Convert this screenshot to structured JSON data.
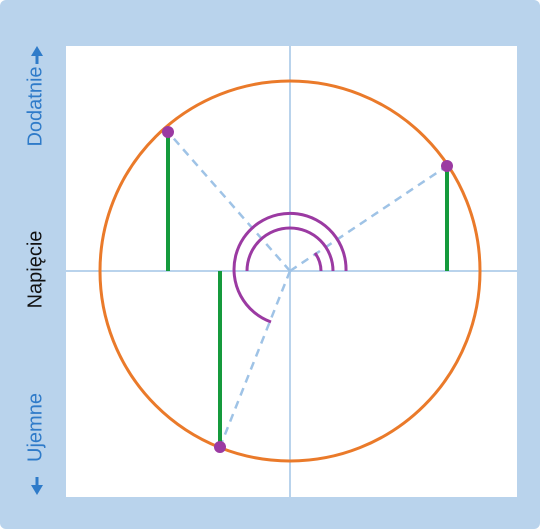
{
  "labels": {
    "positive": "Dodatnie",
    "voltage": "Napięcie",
    "negative": "Ujemne"
  },
  "colors": {
    "background": "#b9d3ec",
    "panel": "#ffffff",
    "axis": "#b9d3ec",
    "circle": "#ea7a2a",
    "phasor": "#9fc3e6",
    "projection": "#159a3c",
    "point": "#9b3aa2",
    "angle_arc": "#9b3aa2",
    "positive_text": "#2f7bc9",
    "voltage_text": "#111111"
  },
  "icons": {
    "up_arrow": "arrow-up-icon",
    "down_arrow": "arrow-down-icon"
  }
}
